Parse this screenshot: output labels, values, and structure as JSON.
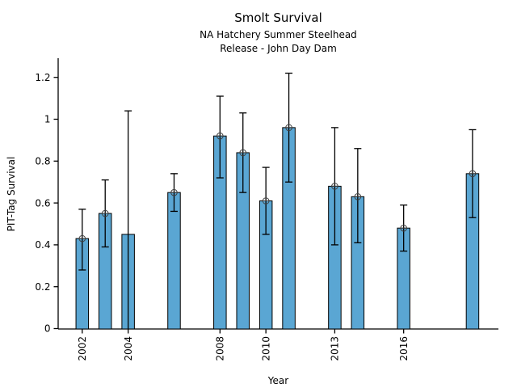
{
  "chart_data": {
    "type": "bar",
    "title": "Smolt Survival",
    "subtitle1": "NA Hatchery Summer Steelhead",
    "subtitle2": "Release - John Day Dam",
    "xlabel": "Year",
    "ylabel": "PIT-Tag Survival",
    "grid": false,
    "legend": null,
    "ylim": [
      0,
      1.29
    ],
    "xlim": [
      2001,
      2020.2
    ],
    "y_ticks": [
      0,
      0.2,
      0.4,
      0.6,
      0.8,
      1,
      1.2
    ],
    "x_ticks": [
      2002,
      2004,
      2008,
      2010,
      2013,
      2016
    ],
    "x_tick_rotation_deg": 90,
    "bar_fill_color": "#5aa6d3",
    "bar_edge_color": "#000000",
    "error_bar_color": "#000000",
    "marker_style": "circle-plus",
    "marker_color": "#3f3f3f",
    "series": [
      {
        "year": 2002,
        "value": 0.43,
        "err_lo": 0.28,
        "err_hi": 0.57,
        "marker": true
      },
      {
        "year": 2003,
        "value": 0.55,
        "err_lo": 0.39,
        "err_hi": 0.71,
        "marker": true
      },
      {
        "year": 2004,
        "value": 0.45,
        "err_lo": 0.0,
        "err_hi": 1.04,
        "marker": false
      },
      {
        "year": 2006,
        "value": 0.65,
        "err_lo": 0.56,
        "err_hi": 0.74,
        "marker": true
      },
      {
        "year": 2008,
        "value": 0.92,
        "err_lo": 0.72,
        "err_hi": 1.11,
        "marker": true
      },
      {
        "year": 2009,
        "value": 0.84,
        "err_lo": 0.65,
        "err_hi": 1.03,
        "marker": true
      },
      {
        "year": 2010,
        "value": 0.61,
        "err_lo": 0.45,
        "err_hi": 0.77,
        "marker": true
      },
      {
        "year": 2011,
        "value": 0.96,
        "err_lo": 0.7,
        "err_hi": 1.22,
        "marker": true
      },
      {
        "year": 2013,
        "value": 0.68,
        "err_lo": 0.4,
        "err_hi": 0.96,
        "marker": true
      },
      {
        "year": 2014,
        "value": 0.63,
        "err_lo": 0.41,
        "err_hi": 0.86,
        "marker": true
      },
      {
        "year": 2016,
        "value": 0.48,
        "err_lo": 0.37,
        "err_hi": 0.59,
        "marker": true
      },
      {
        "year": 2019,
        "value": 0.74,
        "err_lo": 0.53,
        "err_hi": 0.95,
        "marker": true
      }
    ]
  }
}
